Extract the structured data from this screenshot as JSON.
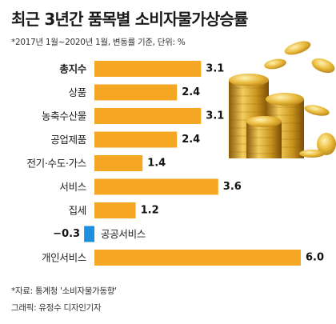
{
  "header": {
    "title": "최근 3년간 품목별 소비자물가상승률",
    "subtitle": "*2017년 1월~2020년 1월, 변동률 기준, 단위: %"
  },
  "footer": {
    "source": "*자료: 통계청 '소비자물가동향'",
    "credit": "그래픽: 유정수 디자인기자"
  },
  "colors": {
    "positive_bar": "#F5A623",
    "negative_bar": "#1E90E0",
    "coin_gold": "#D9A520"
  },
  "illustration": "gold-coins-stack",
  "chart_data": {
    "type": "bar",
    "orientation": "horizontal",
    "categories": [
      "총지수",
      "상품",
      "농축수산물",
      "공업제품",
      "전기·수도·가스",
      "서비스",
      "집세",
      "공공서비스",
      "개인서비스"
    ],
    "values": [
      3.1,
      2.4,
      3.1,
      2.4,
      1.4,
      3.6,
      1.2,
      -0.3,
      6.0
    ],
    "value_labels": [
      "3.1",
      "2.4",
      "3.1",
      "2.4",
      "1.4",
      "3.6",
      "1.2",
      "−0.3",
      "6.0"
    ],
    "highlight_category": "총지수",
    "unit": "%",
    "xlim": [
      -0.3,
      6.0
    ],
    "legend": "none",
    "grid": false
  }
}
